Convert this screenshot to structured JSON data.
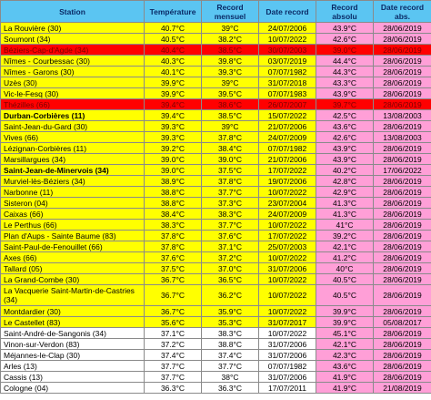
{
  "headers": [
    "Station",
    "Température",
    "Record mensuel",
    "Date record",
    "Record absolu",
    "Date record abs."
  ],
  "rows": [
    {
      "station": "La Rouvière (30)",
      "temp": "40.7°C",
      "rec_m": "39°C",
      "date_m": "24/07/2006",
      "rec_a": "43.9°C",
      "date_a": "28/06/2019",
      "style": "yellow",
      "abs_pink": true,
      "bold": false
    },
    {
      "station": "Soumont (34)",
      "temp": "40.5°C",
      "rec_m": "38.2°C",
      "date_m": "10/07/2022",
      "rec_a": "42.6°C",
      "date_a": "28/06/2019",
      "style": "yellow",
      "abs_pink": true,
      "bold": false
    },
    {
      "station": "Béziers-Cap-d'Agde (34)",
      "temp": "40.4°C",
      "rec_m": "38.5°C",
      "date_m": "30/07/2003",
      "rec_a": "39.0°C",
      "date_a": "28/06/2019",
      "style": "red",
      "abs_pink": true,
      "bold": false
    },
    {
      "station": "Nîmes - Courbessac (30)",
      "temp": "40.3°C",
      "rec_m": "39.8°C",
      "date_m": "03/07/2019",
      "rec_a": "44.4°C",
      "date_a": "28/06/2019",
      "style": "yellow",
      "abs_pink": true,
      "bold": false
    },
    {
      "station": "Nîmes - Garons (30)",
      "temp": "40.1°C",
      "rec_m": "39.3°C",
      "date_m": "07/07/1982",
      "rec_a": "44.3°C",
      "date_a": "28/06/2019",
      "style": "yellow",
      "abs_pink": true,
      "bold": false
    },
    {
      "station": "Uzès (30)",
      "temp": "39.9°C",
      "rec_m": "39°C",
      "date_m": "31/07/2018",
      "rec_a": "43.3°C",
      "date_a": "28/06/2019",
      "style": "yellow",
      "abs_pink": true,
      "bold": false
    },
    {
      "station": "Vic-le-Fesq (30)",
      "temp": "39.9°C",
      "rec_m": "39.5°C",
      "date_m": "07/07/1983",
      "rec_a": "43.9°C",
      "date_a": "28/06/2019",
      "style": "yellow",
      "abs_pink": true,
      "bold": false
    },
    {
      "station": "Thézilles (66)",
      "temp": "39.4°C",
      "rec_m": "38.6°C",
      "date_m": "26/07/2007",
      "rec_a": "39.7°C",
      "date_a": "28/06/2019",
      "style": "red",
      "abs_pink": true,
      "bold": false
    },
    {
      "station": "Durban-Corbières (11)",
      "temp": "39.4°C",
      "rec_m": "38.5°C",
      "date_m": "15/07/2022",
      "rec_a": "42.5°C",
      "date_a": "13/08/2003",
      "style": "yellow",
      "abs_pink": true,
      "bold": true
    },
    {
      "station": "Saint-Jean-du-Gard (30)",
      "temp": "39.3°C",
      "rec_m": "39°C",
      "date_m": "21/07/2006",
      "rec_a": "43.6°C",
      "date_a": "28/06/2019",
      "style": "yellow",
      "abs_pink": true,
      "bold": false
    },
    {
      "station": "Vives (66)",
      "temp": "39.3°C",
      "rec_m": "37.8°C",
      "date_m": "24/07/2009",
      "rec_a": "42.6°C",
      "date_a": "13/08/2003",
      "style": "yellow",
      "abs_pink": true,
      "bold": false
    },
    {
      "station": "Lézignan-Corbières (11)",
      "temp": "39.2°C",
      "rec_m": "38.4°C",
      "date_m": "07/07/1982",
      "rec_a": "43.9°C",
      "date_a": "28/06/2019",
      "style": "yellow",
      "abs_pink": true,
      "bold": false
    },
    {
      "station": "Marsillargues (34)",
      "temp": "39.0°C",
      "rec_m": "39.0°C",
      "date_m": "21/07/2006",
      "rec_a": "43.9°C",
      "date_a": "28/06/2019",
      "style": "yellow",
      "abs_pink": true,
      "bold": false
    },
    {
      "station": "Saint-Jean-de-Minervois (34)",
      "temp": "39.0°C",
      "rec_m": "37.5°C",
      "date_m": "17/07/2022",
      "rec_a": "40.2°C",
      "date_a": "17/06/2022",
      "style": "yellow",
      "abs_pink": true,
      "bold": true
    },
    {
      "station": "Murviel-lès-Béziers (34)",
      "temp": "38.9°C",
      "rec_m": "37.8°C",
      "date_m": "19/07/2006",
      "rec_a": "42.8°C",
      "date_a": "28/06/2019",
      "style": "yellow",
      "abs_pink": true,
      "bold": false
    },
    {
      "station": "Narbonne (11)",
      "temp": "38.8°C",
      "rec_m": "37.7°C",
      "date_m": "10/07/2022",
      "rec_a": "42.9°C",
      "date_a": "28/06/2019",
      "style": "yellow",
      "abs_pink": true,
      "bold": false
    },
    {
      "station": "Sisteron (04)",
      "temp": "38.8°C",
      "rec_m": "37.3°C",
      "date_m": "23/07/2004",
      "rec_a": "41.3°C",
      "date_a": "28/06/2019",
      "style": "yellow",
      "abs_pink": true,
      "bold": false
    },
    {
      "station": "Caixas (66)",
      "temp": "38.4°C",
      "rec_m": "38.3°C",
      "date_m": "24/07/2009",
      "rec_a": "41.3°C",
      "date_a": "28/06/2019",
      "style": "yellow",
      "abs_pink": true,
      "bold": false
    },
    {
      "station": "Le Perthus (66)",
      "temp": "38.3°C",
      "rec_m": "37.7°C",
      "date_m": "10/07/2022",
      "rec_a": "41°C",
      "date_a": "28/06/2019",
      "style": "yellow",
      "abs_pink": true,
      "bold": false
    },
    {
      "station": "Plan d'Aups - Sainte Baume (83)",
      "temp": "37.8°C",
      "rec_m": "37.6°C",
      "date_m": "17/07/2022",
      "rec_a": "39.2°C",
      "date_a": "28/06/2019",
      "style": "yellow",
      "abs_pink": true,
      "bold": false
    },
    {
      "station": "Saint-Paul-de-Fenouillet (66)",
      "temp": "37.8°C",
      "rec_m": "37.1°C",
      "date_m": "25/07/2003",
      "rec_a": "42.1°C",
      "date_a": "28/06/2019",
      "style": "yellow",
      "abs_pink": true,
      "bold": false
    },
    {
      "station": "Axes (66)",
      "temp": "37.6°C",
      "rec_m": "37.2°C",
      "date_m": "10/07/2022",
      "rec_a": "41.2°C",
      "date_a": "28/06/2019",
      "style": "yellow",
      "abs_pink": true,
      "bold": false
    },
    {
      "station": "Tallard (05)",
      "temp": "37.5°C",
      "rec_m": "37.0°C",
      "date_m": "31/07/2006",
      "rec_a": "40°C",
      "date_a": "28/06/2019",
      "style": "yellow",
      "abs_pink": true,
      "bold": false
    },
    {
      "station": "La Grand-Combe (30)",
      "temp": "36.7°C",
      "rec_m": "36.5°C",
      "date_m": "10/07/2022",
      "rec_a": "40.5°C",
      "date_a": "28/06/2019",
      "style": "yellow",
      "abs_pink": true,
      "bold": false
    },
    {
      "station": "La Vacquerie Saint-Martin-de-Castries (34)",
      "temp": "36.7°C",
      "rec_m": "36.2°C",
      "date_m": "10/07/2022",
      "rec_a": "40.5°C",
      "date_a": "28/06/2019",
      "style": "yellow",
      "abs_pink": true,
      "bold": false,
      "tall": true
    },
    {
      "station": "Montdardier (30)",
      "temp": "36.7°C",
      "rec_m": "35.9°C",
      "date_m": "10/07/2022",
      "rec_a": "39.9°C",
      "date_a": "28/06/2019",
      "style": "yellow",
      "abs_pink": true,
      "bold": false
    },
    {
      "station": "Le Castellet (83)",
      "temp": "35.6°C",
      "rec_m": "35.3°C",
      "date_m": "31/07/2017",
      "rec_a": "39.9°C",
      "date_a": "05/08/2017",
      "style": "yellow",
      "abs_pink": true,
      "bold": false
    },
    {
      "station": "Saint-André-de-Sangonis (34)",
      "temp": "37.1°C",
      "rec_m": "38.3°C",
      "date_m": "10/07/2022",
      "rec_a": "45.1°C",
      "date_a": "28/06/2019",
      "style": "white",
      "abs_pink": true,
      "bold": false
    },
    {
      "station": "Vinon-sur-Verdon (83)",
      "temp": "37.2°C",
      "rec_m": "38.8°C",
      "date_m": "31/07/2006",
      "rec_a": "42.1°C",
      "date_a": "28/06/2019",
      "style": "white",
      "abs_pink": true,
      "bold": false
    },
    {
      "station": "Méjannes-le-Clap (30)",
      "temp": "37.4°C",
      "rec_m": "37.4°C",
      "date_m": "31/07/2006",
      "rec_a": "42.3°C",
      "date_a": "28/06/2019",
      "style": "white",
      "abs_pink": true,
      "bold": false
    },
    {
      "station": "Arles (13)",
      "temp": "37.7°C",
      "rec_m": "37.7°C",
      "date_m": "07/07/1982",
      "rec_a": "43.6°C",
      "date_a": "28/06/2019",
      "style": "white",
      "abs_pink": true,
      "bold": false
    },
    {
      "station": "Cassis (13)",
      "temp": "37.7°C",
      "rec_m": "38°C",
      "date_m": "31/07/2006",
      "rec_a": "41.9°C",
      "date_a": "28/06/2019",
      "style": "white",
      "abs_pink": true,
      "bold": false
    },
    {
      "station": "Cologne (04)",
      "temp": "36.3°C",
      "rec_m": "36.3°C",
      "date_m": "17/07/2011",
      "rec_a": "41.9°C",
      "date_a": "21/08/2019",
      "style": "white",
      "abs_pink": true,
      "bold": false
    }
  ]
}
